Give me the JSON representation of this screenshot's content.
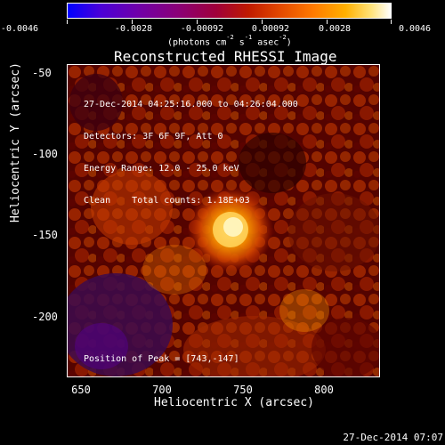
{
  "colorbar": {
    "labels": [
      "-0.0046",
      "-0.0028",
      "-0.00092",
      "0.00092",
      "0.0028",
      "0.0046"
    ],
    "units": "(photons cm",
    "units_sup1": "-2",
    "units_mid": "s",
    "units_sup2": "-1",
    "units_mid2": "asec",
    "units_sup3": "-2",
    "units_end": ")"
  },
  "plot": {
    "title": "Reconstructed RHESSI Image",
    "overlay_lines": [
      "27-Dec-2014 04:25:16.000 to 04:26:04.000",
      "Detectors: 3F 6F 9F, Att 0",
      "Energy Range: 12.0 - 25.0 keV",
      "Clean    Total counts: 1.18E+03"
    ],
    "peak": "Position of Peak = [743,-147]",
    "x_label": "Heliocentric X (arcsec)",
    "y_label": "Heliocentric Y (arcsec)",
    "x_ticks": [
      "650",
      "700",
      "750",
      "800"
    ],
    "y_ticks": [
      "-50",
      "-100",
      "-150",
      "-200"
    ]
  },
  "footer": {
    "timestamp": "27-Dec-2014 07:07"
  }
}
